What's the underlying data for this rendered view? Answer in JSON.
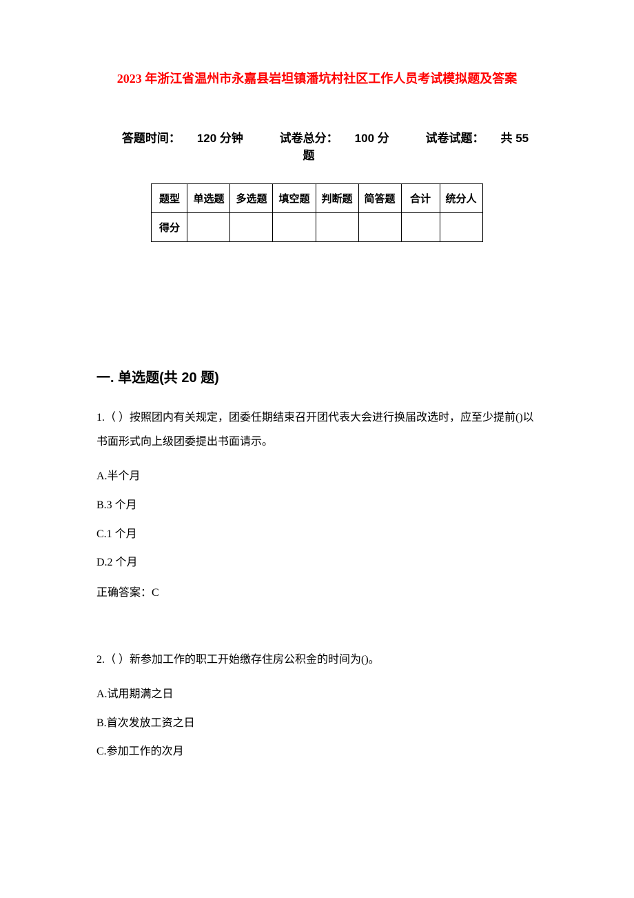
{
  "title_prefix": "2023",
  "title_rest": " 年浙江省温州市永嘉县岩坦镇潘坑村社区工作人员考试模拟题及答案",
  "title_color": "#ff0000",
  "info": {
    "time_label": "答题时间：",
    "time_value": "120 分钟",
    "total_label": "试卷总分：",
    "total_value": "100 分",
    "count_label": "试卷试题：",
    "count_value": "共 55 题"
  },
  "table": {
    "headers": [
      "题型",
      "单选题",
      "多选题",
      "填空题",
      "判断题",
      "简答题",
      "合计",
      "统分人"
    ],
    "row_label": "得分"
  },
  "section1_heading": "一. 单选题(共 20 题)",
  "q1": {
    "text": "1.（ ）按照团内有关规定，团委任期结束召开团代表大会进行换届改选时，应至少提前()以书面形式向上级团委提出书面请示。",
    "options": [
      "A.半个月",
      "B.3 个月",
      "C.1 个月",
      "D.2 个月"
    ],
    "answer_label": "正确答案：",
    "answer_value": "C"
  },
  "q2": {
    "text": "2.（ ）新参加工作的职工开始缴存住房公积金的时间为()。",
    "options": [
      "A.试用期满之日",
      "B.首次发放工资之日",
      "C.参加工作的次月"
    ]
  }
}
